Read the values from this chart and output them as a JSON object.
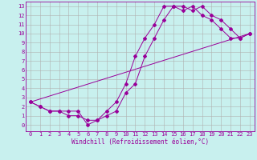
{
  "title": "",
  "xlabel": "Windchill (Refroidissement éolien,°C)",
  "ylabel": "",
  "bg_color": "#c8f0ee",
  "grid_color": "#b0b0b0",
  "line_color": "#990099",
  "xlim": [
    -0.5,
    23.5
  ],
  "ylim": [
    -0.7,
    13.5
  ],
  "xticks": [
    0,
    1,
    2,
    3,
    4,
    5,
    6,
    7,
    8,
    9,
    10,
    11,
    12,
    13,
    14,
    15,
    16,
    17,
    18,
    19,
    20,
    21,
    22,
    23
  ],
  "yticks": [
    0,
    1,
    2,
    3,
    4,
    5,
    6,
    7,
    8,
    9,
    10,
    11,
    12,
    13
  ],
  "line1_x": [
    0,
    1,
    2,
    3,
    4,
    5,
    6,
    7,
    8,
    9,
    10,
    11,
    12,
    13,
    14,
    15,
    16,
    17,
    18,
    19,
    20,
    21,
    22,
    23
  ],
  "line1_y": [
    2.5,
    2.0,
    1.5,
    1.5,
    1.0,
    1.0,
    0.5,
    0.5,
    1.5,
    2.5,
    4.5,
    7.5,
    9.5,
    11.0,
    13.0,
    13.0,
    12.5,
    13.0,
    12.0,
    11.5,
    10.5,
    9.5,
    9.5,
    10.0
  ],
  "line2_x": [
    0,
    1,
    2,
    3,
    4,
    5,
    6,
    7,
    8,
    9,
    10,
    11,
    12,
    13,
    14,
    15,
    16,
    17,
    18,
    19,
    20,
    21,
    22,
    23
  ],
  "line2_y": [
    2.5,
    2.0,
    1.5,
    1.5,
    1.5,
    1.5,
    0.0,
    0.5,
    1.0,
    1.5,
    3.5,
    4.5,
    7.5,
    9.5,
    11.5,
    13.0,
    13.0,
    12.5,
    13.0,
    12.0,
    11.5,
    10.5,
    9.5,
    10.0
  ],
  "line3_x": [
    0,
    23
  ],
  "line3_y": [
    2.5,
    10.0
  ],
  "tick_fontsize": 5.0,
  "xlabel_fontsize": 5.5,
  "marker_size": 2.0,
  "line_width": 0.7
}
